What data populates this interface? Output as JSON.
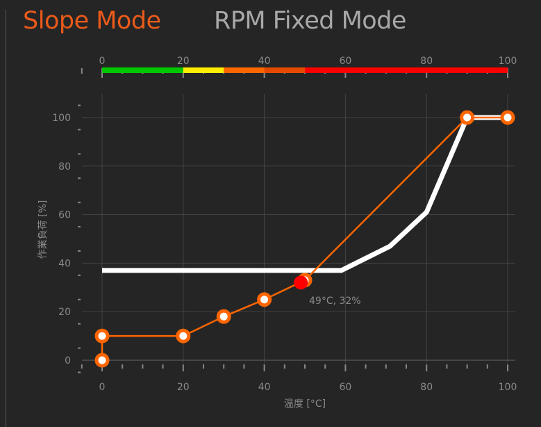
{
  "tabs": [
    {
      "label": "Slope Mode",
      "active": true
    },
    {
      "label": "RPM Fixed Mode",
      "active": false
    }
  ],
  "colors": {
    "accent": "#ff6600",
    "current": "#ff0000",
    "reference": "#ffffff"
  },
  "chart_data": {
    "type": "line",
    "xlabel": "温度 [°C]",
    "ylabel": "作業負荷 [%]",
    "xlim": [
      0,
      100
    ],
    "ylim": [
      0,
      100
    ],
    "xticks": [
      "0",
      "20",
      "40",
      "60",
      "80",
      "100"
    ],
    "yticks": [
      "0",
      "20",
      "40",
      "60",
      "80",
      "100"
    ],
    "color_scale": [
      {
        "from": 0,
        "to": 20,
        "color": "#00c800"
      },
      {
        "from": 20,
        "to": 30,
        "color": "#ffee00"
      },
      {
        "from": 30,
        "to": 40,
        "color": "#ff6600"
      },
      {
        "from": 40,
        "to": 50,
        "color": "#e64a00"
      },
      {
        "from": 50,
        "to": 100,
        "color": "#ff0000"
      }
    ],
    "series": [
      {
        "name": "curve",
        "color": "#ff6600",
        "points": [
          [
            0,
            0
          ],
          [
            0,
            10
          ],
          [
            20,
            10
          ],
          [
            30,
            18
          ],
          [
            40,
            25
          ],
          [
            50,
            33
          ],
          [
            90,
            100
          ],
          [
            100,
            100
          ]
        ]
      },
      {
        "name": "reference",
        "color": "#ffffff",
        "points": [
          [
            0,
            37
          ],
          [
            59,
            37
          ],
          [
            71,
            47
          ],
          [
            80,
            61
          ],
          [
            90,
            100
          ],
          [
            100,
            100
          ]
        ]
      }
    ],
    "current": {
      "x": 49,
      "y": 32,
      "label": "49°C, 32%"
    }
  }
}
